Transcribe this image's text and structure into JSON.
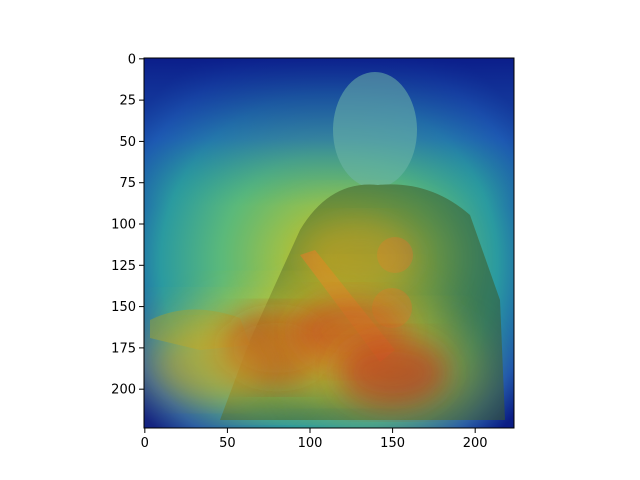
{
  "chart_data": {
    "type": "heatmap",
    "title": "",
    "xlabel": "",
    "ylabel": "",
    "xlim": [
      -0.5,
      223.5
    ],
    "ylim": [
      223.5,
      -0.5
    ],
    "x_ticks": [
      0,
      50,
      100,
      150,
      200
    ],
    "y_ticks": [
      0,
      25,
      50,
      75,
      100,
      125,
      150,
      175,
      200
    ],
    "x_tick_labels": [
      "0",
      "50",
      "100",
      "150",
      "200"
    ],
    "y_tick_labels": [
      "0",
      "25",
      "50",
      "75",
      "100",
      "125",
      "150",
      "175",
      "200"
    ],
    "grid": false,
    "colormap": "jet",
    "image_size": [
      224,
      224
    ],
    "underlying_image": "portrait of a man in military uniform with red sash and star orders",
    "hotspots": [
      {
        "x": 80,
        "y": 175,
        "intensity": 1.0
      },
      {
        "x": 125,
        "y": 165,
        "intensity": 0.9
      },
      {
        "x": 150,
        "y": 190,
        "intensity": 0.85
      },
      {
        "x": 40,
        "y": 185,
        "intensity": 0.6
      },
      {
        "x": 130,
        "y": 120,
        "intensity": 0.6
      }
    ],
    "colors": {
      "background": "#ffffff",
      "axis": "#000000",
      "cold": "#081c8a",
      "mid": "#2aa38f",
      "warm": "#d8c52a",
      "hot": "#b21414"
    }
  }
}
